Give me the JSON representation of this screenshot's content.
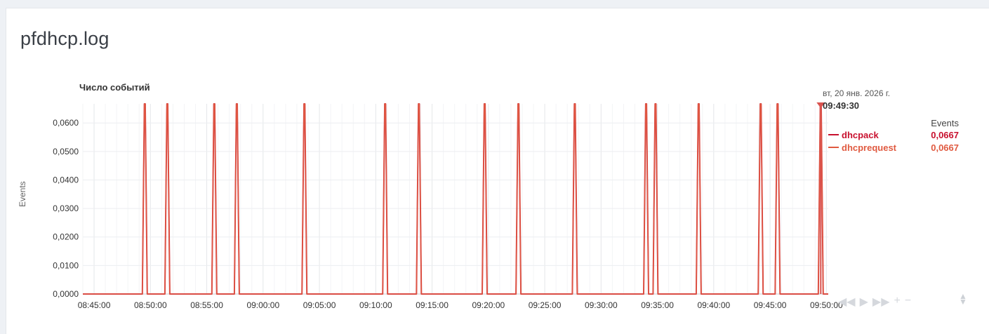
{
  "panel": {
    "title": "pfdhcp.log"
  },
  "chart_data": {
    "type": "line",
    "title": "Число событий",
    "ylabel": "Events",
    "xlabel": "",
    "ylim": [
      0,
      0.0667
    ],
    "yticks": [
      "0,0000",
      "0,0100",
      "0,0200",
      "0,0300",
      "0,0400",
      "0,0500",
      "0,0600"
    ],
    "xticks": [
      "08:45:00",
      "08:50:00",
      "08:55:00",
      "09:00:00",
      "09:05:00",
      "09:10:00",
      "09:15:00",
      "09:20:00",
      "09:25:00",
      "09:30:00",
      "09:35:00",
      "09:40:00",
      "09:45:00",
      "09:50:00"
    ],
    "x_range": [
      "08:44:00",
      "09:50:10"
    ],
    "series": [
      {
        "name": "dhcpack",
        "color": "#c8102e",
        "spike_times": [
          "08:49:30",
          "08:51:30",
          "08:55:40",
          "08:57:40",
          "09:03:40",
          "09:10:50",
          "09:13:50",
          "09:19:40",
          "09:22:40",
          "09:27:40",
          "09:34:00",
          "09:34:50",
          "09:38:40",
          "09:44:10",
          "09:45:40",
          "09:49:30"
        ],
        "spike_value": 0.0667,
        "base_value": 0
      },
      {
        "name": "dhcprequest",
        "color": "#e05a40",
        "spike_times": [
          "08:49:30",
          "08:51:30",
          "08:55:40",
          "08:57:40",
          "09:03:40",
          "09:10:50",
          "09:13:50",
          "09:19:40",
          "09:22:40",
          "09:27:40",
          "09:34:00",
          "09:34:50",
          "09:38:40",
          "09:44:10",
          "09:45:40",
          "09:49:30"
        ],
        "spike_value": 0.0667,
        "base_value": 0
      }
    ],
    "grid": true,
    "legend_position": "right",
    "cursor_time": "09:49:30"
  },
  "legend": {
    "date": "вт, 20 янв. 2026 г.",
    "time": "09:49:30",
    "column_header": "Events",
    "items": [
      {
        "name": "dhcpack",
        "value": "0,0667",
        "color": "#c8102e"
      },
      {
        "name": "dhcprequest",
        "value": "0,0667",
        "color": "#e05a40"
      }
    ]
  },
  "controls": {
    "icons": [
      "rewind-icon",
      "play-icon",
      "fast-forward-icon",
      "zoom-in-icon",
      "zoom-out-icon"
    ],
    "glyphs": [
      "◀◀",
      "▶",
      "▶▶",
      "+",
      "−"
    ],
    "sort_icon": "sort-icon"
  }
}
